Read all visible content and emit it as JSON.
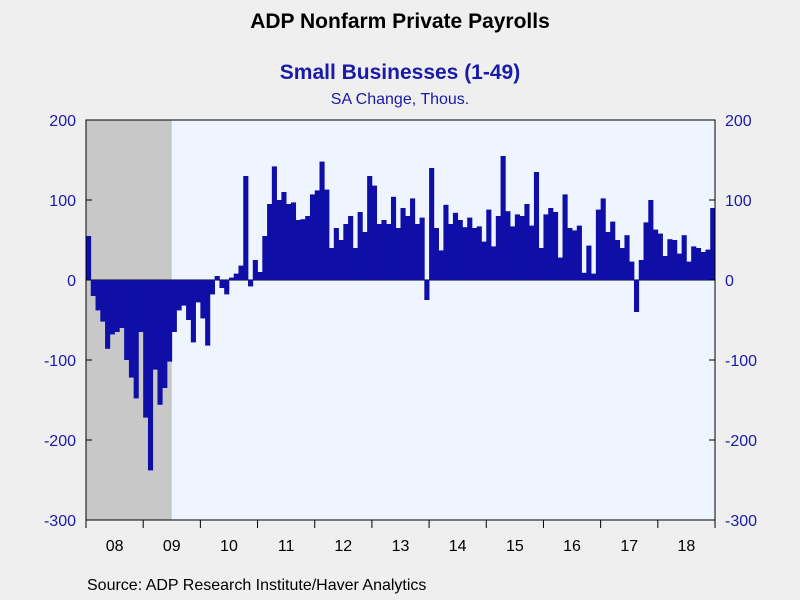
{
  "title": "ADP Nonfarm Private Payrolls",
  "subtitle": "Small Businesses (1-49)",
  "units": "SA Change, Thous.",
  "source": "Source:  ADP Research Institute/Haver Analytics",
  "colors": {
    "bars": "#0f0fa8",
    "plot_background": "#eef5fe",
    "recession_shade": "#c8c8c8",
    "axis_labels": "#1a1aa8"
  },
  "chart_data": {
    "type": "bar",
    "title": "Small Businesses (1-49)",
    "subtitle": "SA Change, Thous.",
    "ylim": [
      -300,
      200
    ],
    "yticks": [
      -300,
      -200,
      -100,
      0,
      100,
      200
    ],
    "ytick_labels": [
      "-300",
      "-200",
      "-100",
      "0",
      "100",
      "200"
    ],
    "x_start": "2008-01",
    "x_end": "2018-12",
    "xtick_labels": [
      "08",
      "09",
      "10",
      "11",
      "12",
      "13",
      "14",
      "15",
      "16",
      "17",
      "18"
    ],
    "recession": {
      "start": "2008-01",
      "end": "2009-06"
    },
    "grid": false,
    "series": [
      {
        "values": [
          55,
          -20,
          -38,
          -52,
          -86,
          -68,
          -65,
          -60,
          -100,
          -122,
          -148,
          -65,
          -172,
          -238,
          -112,
          -156,
          -135,
          -102,
          -65,
          -38,
          -32,
          -50,
          -78,
          -28,
          -48,
          -82,
          -18,
          5,
          -10,
          -18,
          3,
          8,
          18,
          130,
          -8,
          25,
          10,
          55,
          95,
          142,
          100,
          110,
          95,
          97,
          75,
          76,
          80,
          107,
          112,
          148,
          113,
          40,
          65,
          50,
          70,
          80,
          40,
          85,
          60,
          130,
          118,
          70,
          75,
          70,
          104,
          65,
          90,
          80,
          102,
          70,
          78,
          -25,
          140,
          65,
          37,
          94,
          70,
          84,
          75,
          66,
          78,
          65,
          67,
          48,
          88,
          42,
          80,
          155,
          86,
          67,
          82,
          80,
          95,
          68,
          135,
          40,
          82,
          90,
          85,
          28,
          107,
          65,
          62,
          68,
          9,
          43,
          8,
          88,
          102,
          60,
          73,
          50,
          40,
          56,
          23,
          -40,
          25,
          72,
          100,
          63,
          58,
          30,
          51,
          50,
          33,
          56,
          23,
          42,
          40,
          35,
          38,
          90
        ]
      }
    ]
  }
}
